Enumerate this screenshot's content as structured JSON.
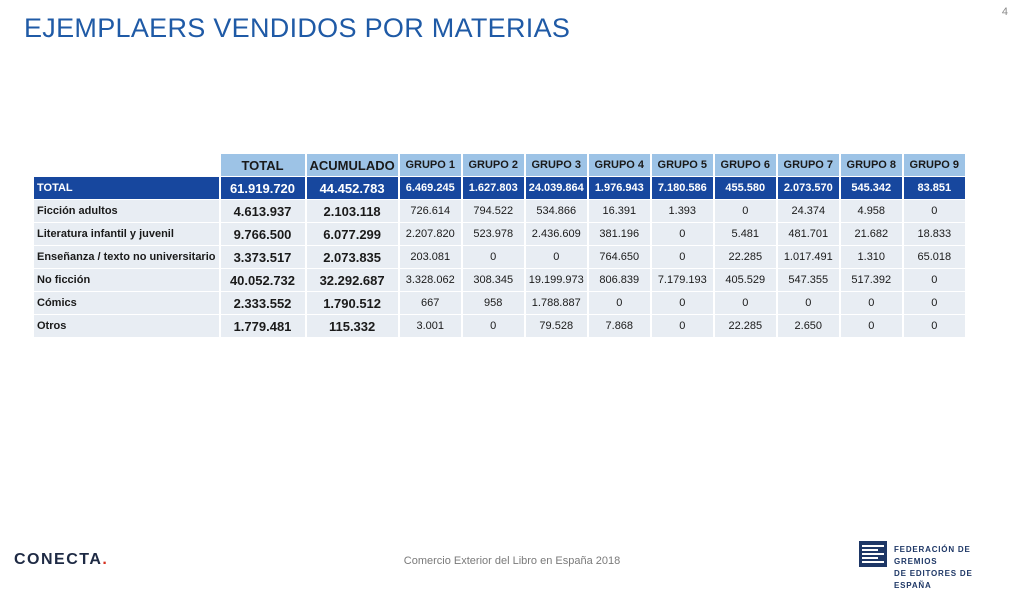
{
  "title": "EJEMPLAERS VENDIDOS POR MATERIAS",
  "page_number": "4",
  "table": {
    "headers": [
      "TOTAL",
      "ACUMULADO",
      "GRUPO 1",
      "GRUPO 2",
      "GRUPO 3",
      "GRUPO 4",
      "GRUPO 5",
      "GRUPO 6",
      "GRUPO 7",
      "GRUPO 8",
      "GRUPO 9"
    ],
    "rows": [
      {
        "label": "TOTAL",
        "cells": [
          "61.919.720",
          "44.452.783",
          "6.469.245",
          "1.627.803",
          "24.039.864",
          "1.976.943",
          "7.180.586",
          "455.580",
          "2.073.570",
          "545.342",
          "83.851"
        ]
      },
      {
        "label": "Ficción adultos",
        "cells": [
          "4.613.937",
          "2.103.118",
          "726.614",
          "794.522",
          "534.866",
          "16.391",
          "1.393",
          "0",
          "24.374",
          "4.958",
          "0"
        ]
      },
      {
        "label": "Literatura infantil y juvenil",
        "cells": [
          "9.766.500",
          "6.077.299",
          "2.207.820",
          "523.978",
          "2.436.609",
          "381.196",
          "0",
          "5.481",
          "481.701",
          "21.682",
          "18.833"
        ]
      },
      {
        "label": "Enseñanza / texto no universitario",
        "cells": [
          "3.373.517",
          "2.073.835",
          "203.081",
          "0",
          "0",
          "764.650",
          "0",
          "22.285",
          "1.017.491",
          "1.310",
          "65.018"
        ]
      },
      {
        "label": "No ficción",
        "cells": [
          "40.052.732",
          "32.292.687",
          "3.328.062",
          "308.345",
          "19.199.973",
          "806.839",
          "7.179.193",
          "405.529",
          "547.355",
          "517.392",
          "0"
        ]
      },
      {
        "label": "Cómics",
        "cells": [
          "2.333.552",
          "1.790.512",
          "667",
          "958",
          "1.788.887",
          "0",
          "0",
          "0",
          "0",
          "0",
          "0"
        ]
      },
      {
        "label": "Otros",
        "cells": [
          "1.779.481",
          "115.332",
          "3.001",
          "0",
          "79.528",
          "7.868",
          "0",
          "22.285",
          "2.650",
          "0",
          "0"
        ]
      }
    ]
  },
  "footer": {
    "center_text": "Comercio Exterior del Libro en España 2018",
    "logo_left": "CONECTA",
    "logo_left_dot": ".",
    "logo_right_line1": "FEDERACIÓN DE GREMIOS",
    "logo_right_line2": "DE EDITORES DE ESPAÑA"
  },
  "colors": {
    "title": "#1f5aa6",
    "header_bg": "#9dc3e6",
    "total_row_bg": "#17479e",
    "row_bg": "#e8edf3"
  }
}
